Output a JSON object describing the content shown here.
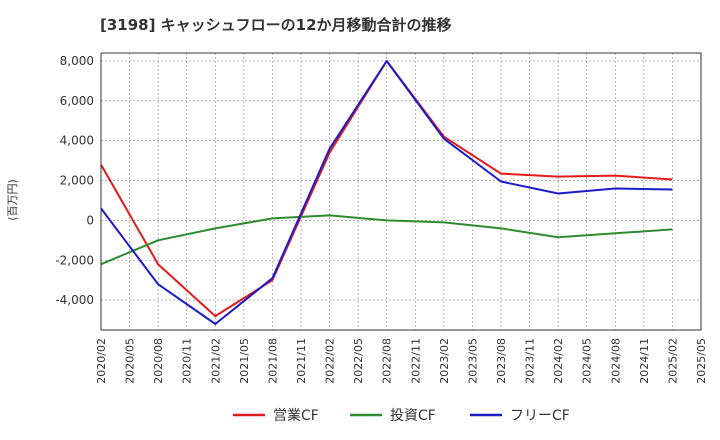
{
  "chart_data": {
    "type": "line",
    "title": "[3198]  キャッシュフローの12か月移動合計の推移",
    "ylabel": "(百万円)",
    "xlabel": "",
    "ylim": [
      -5500,
      8400
    ],
    "yticks": [
      -4000,
      -2000,
      0,
      2000,
      4000,
      6000,
      8000
    ],
    "ytick_labels": [
      "-4,000",
      "-2,000",
      "0",
      "2,000",
      "4,000",
      "6,000",
      "8,000"
    ],
    "x_tick_labels": [
      "2020/02",
      "2020/05",
      "2020/08",
      "2020/11",
      "2021/02",
      "2021/05",
      "2021/08",
      "2021/11",
      "2022/02",
      "2022/05",
      "2022/08",
      "2022/11",
      "2023/02",
      "2023/05",
      "2023/08",
      "2023/11",
      "2024/02",
      "2024/05",
      "2024/08",
      "2024/11",
      "2025/02",
      "2025/05"
    ],
    "grid": true,
    "legend_position": "bottom",
    "series": [
      {
        "name": "営業CF",
        "color": "#e41a1c",
        "x": [
          "2020/02",
          "2020/08",
          "2021/02",
          "2021/08",
          "2022/02",
          "2022/08",
          "2023/02",
          "2023/08",
          "2024/02",
          "2024/08",
          "2025/02"
        ],
        "values": [
          2800,
          -2200,
          -4800,
          -3000,
          3400,
          8000,
          4200,
          2350,
          2200,
          2250,
          2050
        ]
      },
      {
        "name": "投資CF",
        "color": "#2e8b2e",
        "x": [
          "2020/02",
          "2020/08",
          "2021/02",
          "2021/08",
          "2022/02",
          "2022/08",
          "2023/02",
          "2023/08",
          "2024/02",
          "2024/08",
          "2025/02"
        ],
        "values": [
          -2200,
          -1000,
          -400,
          100,
          250,
          0,
          -100,
          -400,
          -850,
          -650,
          -450
        ]
      },
      {
        "name": "フリーCF",
        "color": "#1c1ccc",
        "x": [
          "2020/02",
          "2020/08",
          "2021/02",
          "2021/08",
          "2022/02",
          "2022/08",
          "2023/02",
          "2023/08",
          "2024/02",
          "2024/08",
          "2025/02"
        ],
        "values": [
          600,
          -3200,
          -5200,
          -2900,
          3600,
          8000,
          4100,
          1950,
          1350,
          1600,
          1550
        ]
      }
    ]
  }
}
